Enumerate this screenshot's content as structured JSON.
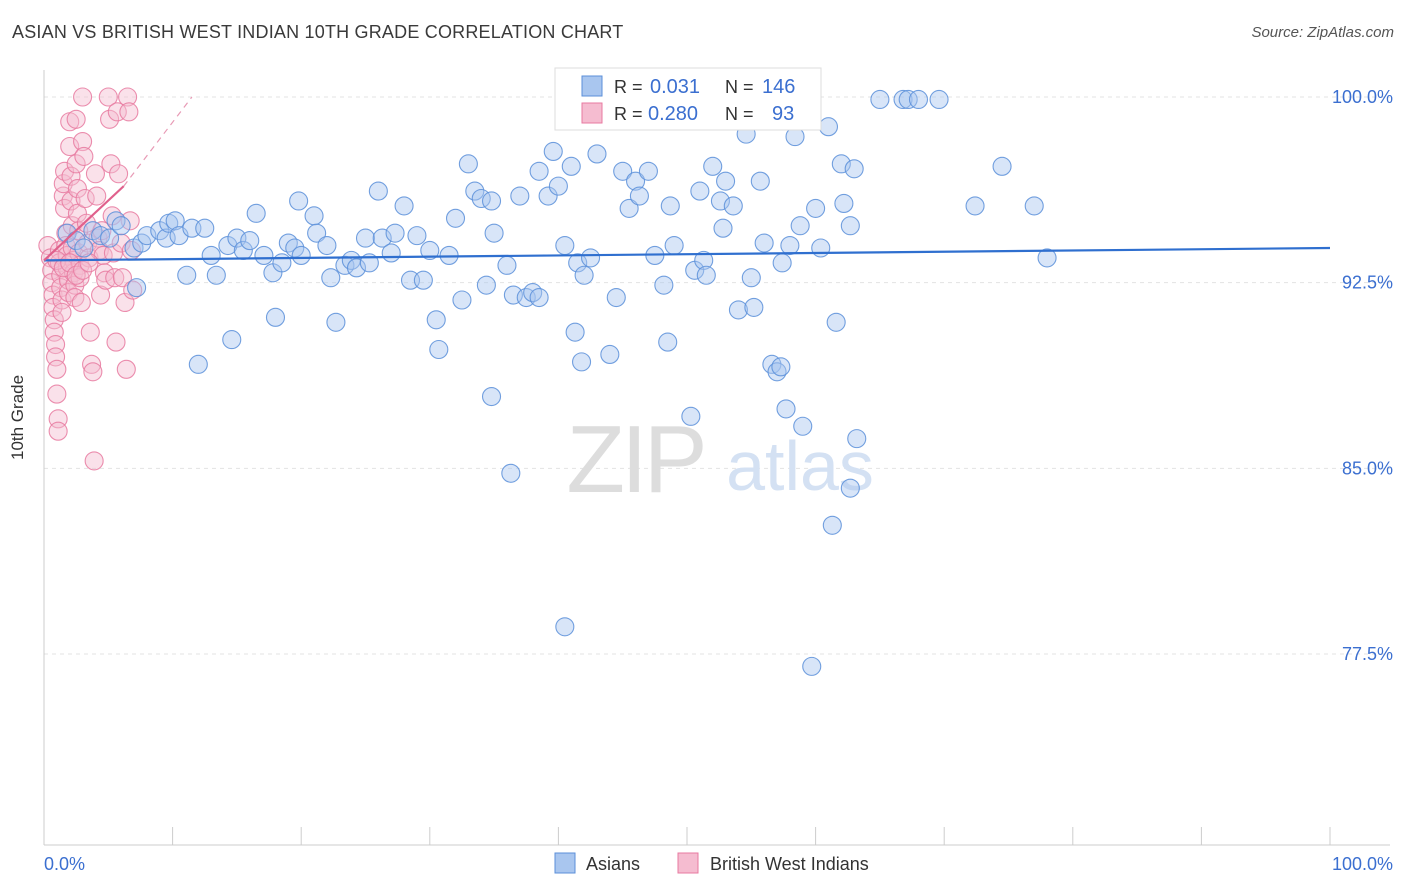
{
  "title": "ASIAN VS BRITISH WEST INDIAN 10TH GRADE CORRELATION CHART",
  "source": "Source: ZipAtlas.com",
  "watermark": {
    "zip": "ZIP",
    "atlas": "atlas"
  },
  "chart_data": {
    "type": "scatter",
    "title": "ASIAN VS BRITISH WEST INDIAN 10TH GRADE CORRELATION CHART",
    "ylabel": "10th Grade",
    "xlabel": "",
    "xlim": [
      0,
      100
    ],
    "ylim": [
      71.5,
      101.5
    ],
    "x_tick_labels": [
      "0.0%",
      "100.0%"
    ],
    "y_ticks": [
      77.5,
      85.0,
      92.5,
      100.0
    ],
    "y_tick_labels": [
      "77.5%",
      "85.0%",
      "92.5%",
      "100.0%"
    ],
    "grid": true,
    "legend_position": "bottom-center",
    "colors": {
      "asians": "#5b8fd9",
      "asians_fill": "#a9c6ef",
      "bwi": "#e87aa0",
      "bwi_fill": "#f5bcd0",
      "value_text": "#3b6fd0"
    },
    "stats": [
      {
        "r_label": "R =",
        "r": "0.031",
        "n_label": "N =",
        "n": "146"
      },
      {
        "r_label": "R =",
        "r": "0.280",
        "n_label": "N =",
        "n": "93"
      }
    ],
    "series": [
      {
        "name": "Asians",
        "trend": {
          "x": [
            0,
            100
          ],
          "y": [
            93.4,
            93.9
          ]
        },
        "points": [
          [
            1.8,
            94.5
          ],
          [
            2.5,
            94.2
          ],
          [
            3.1,
            93.9
          ],
          [
            3.8,
            94.6
          ],
          [
            4.4,
            94.4
          ],
          [
            5.1,
            94.3
          ],
          [
            5.6,
            95.0
          ],
          [
            6.0,
            94.8
          ],
          [
            7.0,
            93.9
          ],
          [
            7.2,
            92.3
          ],
          [
            7.6,
            94.1
          ],
          [
            8.0,
            94.4
          ],
          [
            9.0,
            94.6
          ],
          [
            9.5,
            94.3
          ],
          [
            9.7,
            94.9
          ],
          [
            10.2,
            95.0
          ],
          [
            10.5,
            94.4
          ],
          [
            11.1,
            92.8
          ],
          [
            11.5,
            94.7
          ],
          [
            12.0,
            89.2
          ],
          [
            12.5,
            94.7
          ],
          [
            13.0,
            93.6
          ],
          [
            13.4,
            92.8
          ],
          [
            14.3,
            94.0
          ],
          [
            14.6,
            90.2
          ],
          [
            15.0,
            94.3
          ],
          [
            15.5,
            93.8
          ],
          [
            16.0,
            94.2
          ],
          [
            16.5,
            95.3
          ],
          [
            17.1,
            93.6
          ],
          [
            17.8,
            92.9
          ],
          [
            18.0,
            91.1
          ],
          [
            18.5,
            93.3
          ],
          [
            19.0,
            94.1
          ],
          [
            19.5,
            93.9
          ],
          [
            19.8,
            95.8
          ],
          [
            20.0,
            93.6
          ],
          [
            21.0,
            95.2
          ],
          [
            21.2,
            94.5
          ],
          [
            22.0,
            94.0
          ],
          [
            22.3,
            92.7
          ],
          [
            22.7,
            90.9
          ],
          [
            23.4,
            93.2
          ],
          [
            23.9,
            93.4
          ],
          [
            24.3,
            93.1
          ],
          [
            25.0,
            94.3
          ],
          [
            25.3,
            93.3
          ],
          [
            26.0,
            96.2
          ],
          [
            26.3,
            94.3
          ],
          [
            27.0,
            93.7
          ],
          [
            27.3,
            94.5
          ],
          [
            28.0,
            95.6
          ],
          [
            28.5,
            92.6
          ],
          [
            29.0,
            94.4
          ],
          [
            29.5,
            92.6
          ],
          [
            30.0,
            93.8
          ],
          [
            30.5,
            91.0
          ],
          [
            30.7,
            89.8
          ],
          [
            31.5,
            93.6
          ],
          [
            32.0,
            95.1
          ],
          [
            32.5,
            91.8
          ],
          [
            33.0,
            97.3
          ],
          [
            33.5,
            96.2
          ],
          [
            34.0,
            95.9
          ],
          [
            34.4,
            92.4
          ],
          [
            34.8,
            95.8
          ],
          [
            35.0,
            94.5
          ],
          [
            34.8,
            87.9
          ],
          [
            36.0,
            93.2
          ],
          [
            36.3,
            84.8
          ],
          [
            36.5,
            92.0
          ],
          [
            37.0,
            96.0
          ],
          [
            37.5,
            91.9
          ],
          [
            38.0,
            92.1
          ],
          [
            38.5,
            97.0
          ],
          [
            38.5,
            91.9
          ],
          [
            39.2,
            96.0
          ],
          [
            39.6,
            97.8
          ],
          [
            40.0,
            96.4
          ],
          [
            40.5,
            94.0
          ],
          [
            40.5,
            78.6
          ],
          [
            41.0,
            97.2
          ],
          [
            41.3,
            90.5
          ],
          [
            41.5,
            93.3
          ],
          [
            41.8,
            89.3
          ],
          [
            42.0,
            92.8
          ],
          [
            42.5,
            93.5
          ],
          [
            43.0,
            97.7
          ],
          [
            44.0,
            89.6
          ],
          [
            44.5,
            91.9
          ],
          [
            45.0,
            97.0
          ],
          [
            45.5,
            95.5
          ],
          [
            46.0,
            96.6
          ],
          [
            46.3,
            96.0
          ],
          [
            47.0,
            97.0
          ],
          [
            47.5,
            93.6
          ],
          [
            48.2,
            92.4
          ],
          [
            48.5,
            90.1
          ],
          [
            48.7,
            95.6
          ],
          [
            49.0,
            94.0
          ],
          [
            50.3,
            87.1
          ],
          [
            50.6,
            93.0
          ],
          [
            51.0,
            96.2
          ],
          [
            51.3,
            93.4
          ],
          [
            51.5,
            92.8
          ],
          [
            52.0,
            97.2
          ],
          [
            52.6,
            95.8
          ],
          [
            52.8,
            94.7
          ],
          [
            53.0,
            96.6
          ],
          [
            53.6,
            95.6
          ],
          [
            54.0,
            91.4
          ],
          [
            54.6,
            98.5
          ],
          [
            55.0,
            92.7
          ],
          [
            55.2,
            91.5
          ],
          [
            55.7,
            96.6
          ],
          [
            56.0,
            94.1
          ],
          [
            56.6,
            89.2
          ],
          [
            57.0,
            88.9
          ],
          [
            57.3,
            89.1
          ],
          [
            57.4,
            93.3
          ],
          [
            57.7,
            87.4
          ],
          [
            58.0,
            94.0
          ],
          [
            58.4,
            98.4
          ],
          [
            58.8,
            94.8
          ],
          [
            59.0,
            86.7
          ],
          [
            59.7,
            77.0
          ],
          [
            60.0,
            95.5
          ],
          [
            60.4,
            93.9
          ],
          [
            61.0,
            98.8
          ],
          [
            61.3,
            82.7
          ],
          [
            61.6,
            90.9
          ],
          [
            62.0,
            97.3
          ],
          [
            62.2,
            95.7
          ],
          [
            62.7,
            84.2
          ],
          [
            62.7,
            94.8
          ],
          [
            63.0,
            97.1
          ],
          [
            63.2,
            86.2
          ],
          [
            65.0,
            99.9
          ],
          [
            66.8,
            99.9
          ],
          [
            67.2,
            99.9
          ],
          [
            68.0,
            99.9
          ],
          [
            69.6,
            99.9
          ],
          [
            72.4,
            95.6
          ],
          [
            74.5,
            97.2
          ],
          [
            77.0,
            95.6
          ],
          [
            78.0,
            93.5
          ]
        ]
      },
      {
        "name": "British West Indians",
        "trend": {
          "x": [
            0,
            6.2
          ],
          "y": [
            93.4,
            96.4
          ],
          "dashed_extension": {
            "x": [
              6.2,
              11.5
            ],
            "y": [
              96.4,
              100.0
            ]
          }
        },
        "points": [
          [
            0.3,
            94.0
          ],
          [
            0.5,
            93.5
          ],
          [
            0.6,
            93.0
          ],
          [
            0.6,
            92.5
          ],
          [
            0.7,
            92.0
          ],
          [
            0.7,
            91.5
          ],
          [
            0.8,
            91.0
          ],
          [
            0.8,
            90.5
          ],
          [
            0.9,
            90.0
          ],
          [
            0.9,
            89.5
          ],
          [
            1.0,
            89.0
          ],
          [
            1.0,
            88.0
          ],
          [
            1.1,
            87.0
          ],
          [
            1.1,
            86.5
          ],
          [
            1.2,
            93.8
          ],
          [
            1.2,
            93.3
          ],
          [
            1.3,
            92.8
          ],
          [
            1.3,
            92.3
          ],
          [
            1.4,
            91.8
          ],
          [
            1.4,
            91.3
          ],
          [
            1.5,
            96.0
          ],
          [
            1.5,
            96.5
          ],
          [
            1.6,
            97.0
          ],
          [
            1.6,
            95.5
          ],
          [
            1.7,
            94.5
          ],
          [
            1.7,
            94.0
          ],
          [
            1.8,
            93.6
          ],
          [
            1.8,
            93.1
          ],
          [
            1.9,
            92.6
          ],
          [
            1.9,
            92.1
          ],
          [
            2.0,
            99.0
          ],
          [
            2.0,
            98.0
          ],
          [
            2.1,
            96.8
          ],
          [
            2.1,
            95.8
          ],
          [
            2.2,
            94.8
          ],
          [
            2.2,
            93.9
          ],
          [
            2.3,
            93.4
          ],
          [
            2.3,
            92.9
          ],
          [
            2.4,
            92.4
          ],
          [
            2.4,
            91.9
          ],
          [
            2.5,
            99.1
          ],
          [
            2.5,
            97.3
          ],
          [
            2.6,
            96.3
          ],
          [
            2.6,
            95.3
          ],
          [
            2.7,
            94.6
          ],
          [
            2.7,
            93.7
          ],
          [
            2.8,
            93.2
          ],
          [
            2.8,
            92.7
          ],
          [
            2.9,
            91.7
          ],
          [
            3.0,
            100.0
          ],
          [
            3.0,
            98.2
          ],
          [
            3.1,
            97.6
          ],
          [
            3.2,
            95.9
          ],
          [
            3.3,
            94.9
          ],
          [
            3.4,
            94.1
          ],
          [
            3.5,
            93.5
          ],
          [
            3.6,
            90.5
          ],
          [
            3.7,
            89.2
          ],
          [
            3.8,
            88.9
          ],
          [
            3.9,
            85.3
          ],
          [
            4.0,
            96.9
          ],
          [
            4.1,
            96.0
          ],
          [
            4.2,
            94.3
          ],
          [
            4.3,
            93.8
          ],
          [
            4.4,
            92.0
          ],
          [
            4.5,
            94.6
          ],
          [
            4.6,
            93.6
          ],
          [
            4.7,
            92.9
          ],
          [
            4.8,
            92.6
          ],
          [
            5.0,
            100.0
          ],
          [
            5.1,
            99.1
          ],
          [
            5.2,
            97.3
          ],
          [
            5.3,
            95.2
          ],
          [
            5.4,
            93.7
          ],
          [
            5.5,
            92.7
          ],
          [
            5.6,
            90.1
          ],
          [
            5.7,
            99.4
          ],
          [
            5.8,
            96.9
          ],
          [
            6.0,
            94.1
          ],
          [
            6.1,
            92.7
          ],
          [
            6.3,
            91.7
          ],
          [
            6.4,
            89.0
          ],
          [
            6.5,
            100.0
          ],
          [
            6.6,
            99.4
          ],
          [
            6.7,
            95.0
          ],
          [
            6.8,
            93.8
          ],
          [
            6.9,
            92.2
          ],
          [
            1.0,
            93.4
          ],
          [
            1.5,
            93.1
          ],
          [
            2.0,
            93.3
          ],
          [
            2.5,
            92.8
          ],
          [
            3.0,
            93.0
          ],
          [
            3.5,
            93.3
          ]
        ]
      }
    ]
  }
}
